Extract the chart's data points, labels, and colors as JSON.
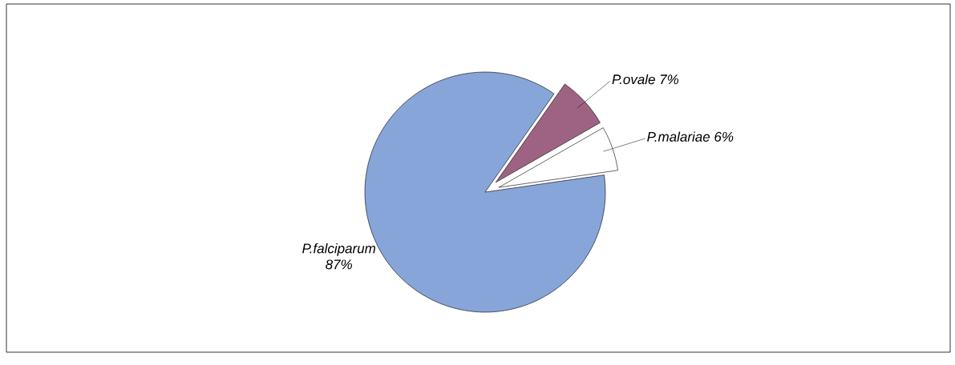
{
  "chart_data": {
    "type": "pie",
    "categories": [
      "P.falciparum",
      "P.ovale",
      "P.malariae"
    ],
    "values": [
      87,
      7,
      6
    ],
    "colors": [
      "#87a5d9",
      "#9e6383",
      "#ffffff"
    ],
    "value_labels": [
      "87%",
      "7%",
      "6%"
    ]
  }
}
